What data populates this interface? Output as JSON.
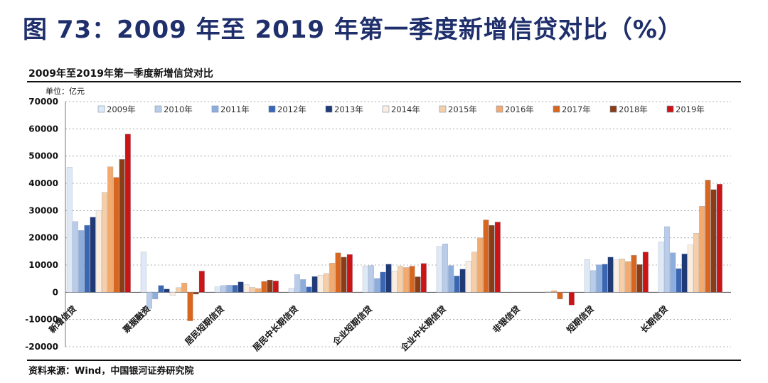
{
  "header": {
    "figure_title": "图 73：2009 年至 2019 年第一季度新增信贷对比（%）"
  },
  "chart_data": {
    "type": "bar",
    "title": "2009年至2019年第一季度新增信贷对比",
    "unit_label": "单位：亿元",
    "source": "资料来源：Wind，中国银河证券研究院",
    "ylim": [
      -20000,
      70000
    ],
    "yticks": [
      "70000",
      "60000",
      "50000",
      "40000",
      "30000",
      "20000",
      "10000",
      "0",
      "-10000",
      "-20000"
    ],
    "grid": true,
    "legend_position": "top",
    "categories": [
      "新增信贷",
      "票据融资",
      "居民短期信贷",
      "居民中长期信贷",
      "企业短期信贷",
      "企业中长期信贷",
      "非银信贷",
      "短期信贷",
      "长期信贷"
    ],
    "series": [
      {
        "name": "2009年",
        "color": "#dfe9f6",
        "values": [
          45900,
          14800,
          2000,
          1500,
          9700,
          16800,
          0,
          12000,
          18500
        ]
      },
      {
        "name": "2010年",
        "color": "#b9cdea",
        "values": [
          26000,
          -6000,
          2500,
          6500,
          9800,
          17800,
          0,
          8000,
          24100
        ]
      },
      {
        "name": "2011年",
        "color": "#8daedd",
        "values": [
          22700,
          -2500,
          2600,
          4700,
          5100,
          9800,
          0,
          10100,
          14500
        ]
      },
      {
        "name": "2012年",
        "color": "#3a66b2",
        "values": [
          24600,
          2500,
          2600,
          2000,
          7400,
          6000,
          0,
          10300,
          8700
        ]
      },
      {
        "name": "2013年",
        "color": "#1f3a74",
        "values": [
          27600,
          1200,
          3800,
          5800,
          10300,
          8500,
          0,
          12900,
          14100
        ]
      },
      {
        "name": "2014年",
        "color": "#fbeee1",
        "values": [
          30000,
          -1200,
          2800,
          6300,
          7800,
          11500,
          0,
          11900,
          17400
        ]
      },
      {
        "name": "2015年",
        "color": "#f6cfa8",
        "values": [
          36700,
          1700,
          1800,
          6900,
          9600,
          14800,
          200,
          12300,
          21700
        ]
      },
      {
        "name": "2016年",
        "color": "#f2aa6f",
        "values": [
          46100,
          3400,
          1400,
          10700,
          9100,
          20000,
          600,
          11300,
          31600
        ]
      },
      {
        "name": "2017年",
        "color": "#d8661e",
        "values": [
          42200,
          -10500,
          4000,
          14500,
          9600,
          26600,
          -2500,
          13600,
          41200
        ]
      },
      {
        "name": "2018年",
        "color": "#8a3d17",
        "values": [
          48800,
          -700,
          4500,
          12900,
          5700,
          24600,
          0,
          10200,
          37700
        ]
      },
      {
        "name": "2019年",
        "color": "#cc1414",
        "values": [
          58100,
          7800,
          4200,
          13900,
          10600,
          25800,
          -4700,
          14800,
          39700
        ]
      }
    ]
  }
}
